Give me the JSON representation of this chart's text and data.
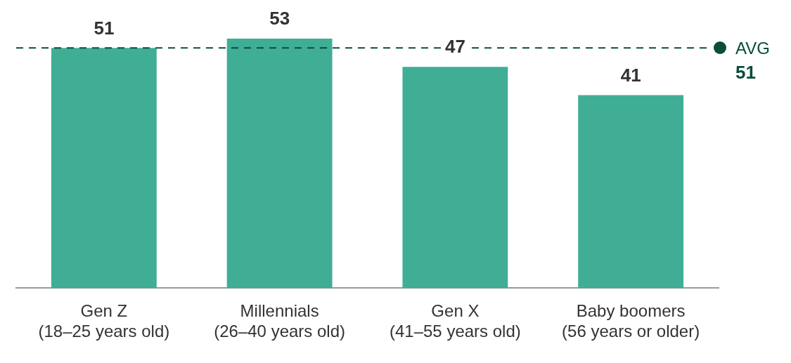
{
  "chart_data": {
    "type": "bar",
    "categories": [
      "Gen Z\n(18–25 years old)",
      "Millennials\n(26–40 years old)",
      "Gen X\n(41–55 years old)",
      "Baby boomers\n(56 years or older)"
    ],
    "values": [
      51,
      53,
      47,
      41
    ],
    "color": "#40ae94",
    "tick_labels": "x",
    "grid": false,
    "legend": false,
    "data_labels": true,
    "ref_lines": [
      {
        "axis": "y",
        "value": 51,
        "label": "AVG 51",
        "color": "#0b4d3a",
        "line_style": "dashed"
      }
    ]
  }
}
